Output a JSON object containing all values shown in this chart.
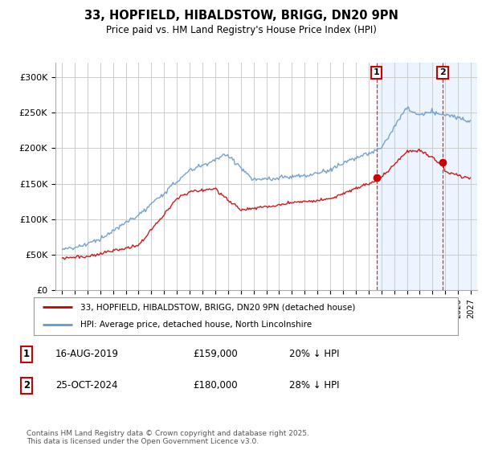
{
  "title": "33, HOPFIELD, HIBALDSTOW, BRIGG, DN20 9PN",
  "subtitle": "Price paid vs. HM Land Registry's House Price Index (HPI)",
  "legend_line1": "33, HOPFIELD, HIBALDSTOW, BRIGG, DN20 9PN (detached house)",
  "legend_line2": "HPI: Average price, detached house, North Lincolnshire",
  "annotation1_label": "1",
  "annotation1_date": "16-AUG-2019",
  "annotation1_price": "£159,000",
  "annotation1_hpi": "20% ↓ HPI",
  "annotation2_label": "2",
  "annotation2_date": "25-OCT-2024",
  "annotation2_price": "£180,000",
  "annotation2_hpi": "28% ↓ HPI",
  "footer": "Contains HM Land Registry data © Crown copyright and database right 2025.\nThis data is licensed under the Open Government Licence v3.0.",
  "red_color": "#cc0000",
  "blue_color": "#6699cc",
  "background_color": "#ffffff",
  "grid_color": "#cccccc",
  "shaded_color": "#ddeeff",
  "hatch_color": "#bbccdd",
  "annotation_line_color": "#cc0000",
  "sale1_x": 2019.625,
  "sale1_y": 159000,
  "sale2_x": 2024.792,
  "sale2_y": 180000,
  "ylim": [
    0,
    320000
  ],
  "yticks": [
    0,
    50000,
    100000,
    150000,
    200000,
    250000,
    300000
  ],
  "ytick_labels": [
    "£0",
    "£50K",
    "£100K",
    "£150K",
    "£200K",
    "£250K",
    "£300K"
  ],
  "xlim_left": 1994.5,
  "xlim_right": 2027.5
}
